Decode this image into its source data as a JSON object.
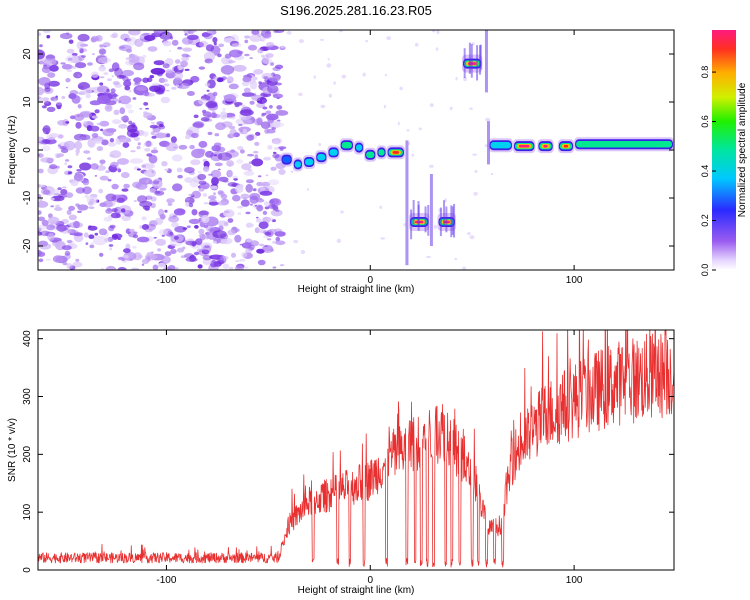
{
  "figure": {
    "title": "S196.2025.281.16.23.R05"
  },
  "colors": {
    "background": "#ffffff",
    "axes": "#000000",
    "noise_purple": "#7b2fe0",
    "snr_line": "#e83030"
  },
  "colorbar": {
    "label": "Normalized spectral amplitude",
    "ticks": [
      "0.0",
      "0.2",
      "0.4",
      "0.6",
      "0.8"
    ],
    "range": [
      0,
      0.97
    ],
    "colormap": "rainbow (violet-blue-cyan-green-yellow-orange-red-magenta)"
  },
  "chart_data": [
    {
      "type": "heatmap",
      "title": "S196.2025.281.16.23.R05",
      "xlabel": "Height of straight line (km)",
      "ylabel": "Frequency (Hz)",
      "xlim": [
        -163,
        149
      ],
      "ylim": [
        -25,
        25
      ],
      "xticks": [
        "-100",
        "0",
        "100"
      ],
      "yticks": [
        "20",
        "10",
        "0",
        "-10",
        "-20"
      ],
      "grid": false,
      "noise_region_x": [
        -163,
        -43
      ],
      "segments": [
        {
          "x": [
            -44,
            -38
          ],
          "y": -2,
          "amp": 0.3
        },
        {
          "x": [
            -38,
            -33
          ],
          "y": -3,
          "amp": 0.35
        },
        {
          "x": [
            -33,
            -27
          ],
          "y": -2.5,
          "amp": 0.35
        },
        {
          "x": [
            -27,
            -21
          ],
          "y": -1.5,
          "amp": 0.4
        },
        {
          "x": [
            -21,
            -15
          ],
          "y": -0.5,
          "amp": 0.4
        },
        {
          "x": [
            -15,
            -8
          ],
          "y": 1,
          "amp": 0.45
        },
        {
          "x": [
            -8,
            -3
          ],
          "y": 0.5,
          "amp": 0.35
        },
        {
          "x": [
            -3,
            3
          ],
          "y": -1,
          "amp": 0.5
        },
        {
          "x": [
            3,
            8
          ],
          "y": -0.5,
          "amp": 0.45
        },
        {
          "x": [
            8,
            17
          ],
          "y": -0.5,
          "amp": 0.9
        },
        {
          "x": [
            19,
            29
          ],
          "y": -15,
          "amp": 0.95
        },
        {
          "x": [
            33,
            42
          ],
          "y": -15,
          "amp": 0.95
        },
        {
          "x": [
            45,
            55
          ],
          "y": 18,
          "amp": 0.95
        },
        {
          "x": [
            58,
            70
          ],
          "y": 1,
          "amp": 0.4
        },
        {
          "x": [
            70,
            81
          ],
          "y": 0.8,
          "amp": 0.95
        },
        {
          "x": [
            82,
            90
          ],
          "y": 0.8,
          "amp": 0.95
        },
        {
          "x": [
            92,
            100
          ],
          "y": 0.8,
          "amp": 0.9
        },
        {
          "x": [
            100,
            149
          ],
          "y": 1.2,
          "amp": 0.55
        }
      ]
    },
    {
      "type": "line",
      "xlabel": "Height of straight line (km)",
      "ylabel": "SNR (10 * v/v)",
      "xlim": [
        -163,
        149
      ],
      "ylim": [
        0,
        415
      ],
      "xticks": [
        "-100",
        "0",
        "100"
      ],
      "yticks": [
        "400",
        "300",
        "200",
        "100",
        "0"
      ],
      "grid": false,
      "series": [
        {
          "color": "#e83030",
          "trend": {
            "x": [
              -163,
              -45,
              -40,
              -30,
              -15,
              0,
              10,
              25,
              37,
              45,
              52,
              58,
              64,
              70,
              85,
              100,
              120,
              149
            ],
            "y": [
              18,
              20,
              80,
              120,
              140,
              160,
              200,
              230,
              250,
              190,
              150,
              70,
              80,
              200,
              270,
              300,
              330,
              350
            ]
          },
          "dropouts_x": [
            -28,
            -16,
            -10,
            -3,
            8,
            18,
            22,
            25,
            28,
            31,
            37,
            40,
            44,
            50,
            53,
            57,
            61,
            65
          ]
        }
      ]
    }
  ]
}
